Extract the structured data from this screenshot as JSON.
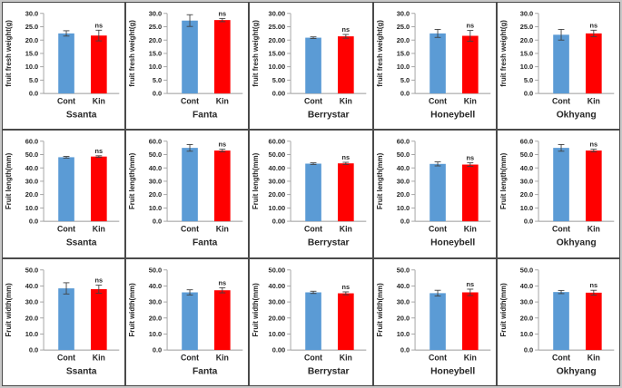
{
  "figure_title": "",
  "colors": {
    "cont_bar": "#5b9bd5",
    "kin_bar": "#ff0000",
    "error_bar": "#404040",
    "axis_line": "#9b9b9b",
    "text": "#262626",
    "panel_border": "#4a4a4a",
    "frame": "#c8c8c8"
  },
  "categories": [
    "Cont",
    "Kin"
  ],
  "annotation_label": "ns",
  "chart_data": [
    {
      "type": "bar",
      "row": 1,
      "col": 1,
      "cultivar": "Ssanta",
      "ylabel": "fruit fresh weight(g)",
      "ylim": [
        0,
        30
      ],
      "ytick_step": 5,
      "tick_decimals": 1,
      "categories": [
        "Cont",
        "Kin"
      ],
      "values": [
        22.5,
        21.7
      ],
      "errors": [
        1.0,
        2.0
      ],
      "annotation": "ns"
    },
    {
      "type": "bar",
      "row": 1,
      "col": 2,
      "cultivar": "Fanta",
      "ylabel": "fruit fresh weight(g)",
      "ylim": [
        0,
        30
      ],
      "ytick_step": 5,
      "tick_decimals": 1,
      "categories": [
        "Cont",
        "Kin"
      ],
      "values": [
        27.3,
        27.5
      ],
      "errors": [
        2.2,
        0.6
      ],
      "annotation": "ns"
    },
    {
      "type": "bar",
      "row": 1,
      "col": 3,
      "cultivar": "Berrystar",
      "ylabel": "fruit fresh weight(g)",
      "ylim": [
        0,
        30
      ],
      "ytick_step": 5,
      "tick_decimals": 2,
      "categories": [
        "Cont",
        "Kin"
      ],
      "values": [
        20.9,
        21.4
      ],
      "errors": [
        0.3,
        0.7
      ],
      "annotation": "ns"
    },
    {
      "type": "bar",
      "row": 1,
      "col": 4,
      "cultivar": "Honeybell",
      "ylabel": "fruit fresh weight(g)",
      "ylim": [
        0,
        30
      ],
      "ytick_step": 5,
      "tick_decimals": 1,
      "categories": [
        "Cont",
        "Kin"
      ],
      "values": [
        22.5,
        21.6
      ],
      "errors": [
        1.5,
        2.0
      ],
      "annotation": "ns"
    },
    {
      "type": "bar",
      "row": 1,
      "col": 5,
      "cultivar": "Okhyang",
      "ylabel": "fruit fresh weight(g)",
      "ylim": [
        0,
        30
      ],
      "ytick_step": 5,
      "tick_decimals": 1,
      "categories": [
        "Cont",
        "Kin"
      ],
      "values": [
        22.0,
        22.5
      ],
      "errors": [
        2.0,
        1.2
      ],
      "annotation": "ns"
    },
    {
      "type": "bar",
      "row": 2,
      "col": 1,
      "cultivar": "Ssanta",
      "ylabel": "Fruit length(mm)",
      "ylim": [
        0,
        60
      ],
      "ytick_step": 10,
      "tick_decimals": 1,
      "categories": [
        "Cont",
        "Kin"
      ],
      "values": [
        48.0,
        48.5
      ],
      "errors": [
        0.6,
        0.6
      ],
      "annotation": "ns"
    },
    {
      "type": "bar",
      "row": 2,
      "col": 2,
      "cultivar": "Fanta",
      "ylabel": "Fruit length(mm)",
      "ylim": [
        0,
        60
      ],
      "ytick_step": 10,
      "tick_decimals": 1,
      "categories": [
        "Cont",
        "Kin"
      ],
      "values": [
        55.0,
        53.0
      ],
      "errors": [
        2.5,
        1.0
      ],
      "annotation": "ns"
    },
    {
      "type": "bar",
      "row": 2,
      "col": 3,
      "cultivar": "Berrystar",
      "ylabel": "Fruit length(mm)",
      "ylim": [
        0,
        60
      ],
      "ytick_step": 10,
      "tick_decimals": 2,
      "categories": [
        "Cont",
        "Kin"
      ],
      "values": [
        43.2,
        43.4
      ],
      "errors": [
        0.6,
        0.8
      ],
      "annotation": "ns"
    },
    {
      "type": "bar",
      "row": 2,
      "col": 4,
      "cultivar": "Honeybell",
      "ylabel": "Fruit length(mm)",
      "ylim": [
        0,
        60
      ],
      "ytick_step": 10,
      "tick_decimals": 1,
      "categories": [
        "Cont",
        "Kin"
      ],
      "values": [
        43.0,
        42.5
      ],
      "errors": [
        1.5,
        1.3
      ],
      "annotation": "ns"
    },
    {
      "type": "bar",
      "row": 2,
      "col": 5,
      "cultivar": "Okhyang",
      "ylabel": "Fruit length(mm)",
      "ylim": [
        0,
        60
      ],
      "ytick_step": 10,
      "tick_decimals": 1,
      "categories": [
        "Cont",
        "Kin"
      ],
      "values": [
        55.0,
        53.0
      ],
      "errors": [
        2.5,
        1.0
      ],
      "annotation": "ns"
    },
    {
      "type": "bar",
      "row": 3,
      "col": 1,
      "cultivar": "Ssanta",
      "ylabel": "Fruit width(mm)",
      "ylim": [
        0,
        50
      ],
      "ytick_step": 10,
      "tick_decimals": 1,
      "categories": [
        "Cont",
        "Kin"
      ],
      "values": [
        38.5,
        38.0
      ],
      "errors": [
        3.5,
        2.5
      ],
      "annotation": "ns"
    },
    {
      "type": "bar",
      "row": 3,
      "col": 2,
      "cultivar": "Fanta",
      "ylabel": "Fruit width(mm)",
      "ylim": [
        0,
        50
      ],
      "ytick_step": 10,
      "tick_decimals": 1,
      "categories": [
        "Cont",
        "Kin"
      ],
      "values": [
        36.0,
        37.3
      ],
      "errors": [
        1.6,
        1.6
      ],
      "annotation": "ns"
    },
    {
      "type": "bar",
      "row": 3,
      "col": 3,
      "cultivar": "Berrystar",
      "ylabel": "Fruit width(mm)",
      "ylim": [
        0,
        50
      ],
      "ytick_step": 10,
      "tick_decimals": 2,
      "categories": [
        "Cont",
        "Kin"
      ],
      "values": [
        36.0,
        35.4
      ],
      "errors": [
        0.7,
        0.9
      ],
      "annotation": "ns"
    },
    {
      "type": "bar",
      "row": 3,
      "col": 4,
      "cultivar": "Honeybell",
      "ylabel": "Fruit width(mm)",
      "ylim": [
        0,
        50
      ],
      "ytick_step": 10,
      "tick_decimals": 1,
      "categories": [
        "Cont",
        "Kin"
      ],
      "values": [
        35.5,
        36.0
      ],
      "errors": [
        1.8,
        2.0
      ],
      "annotation": "ns"
    },
    {
      "type": "bar",
      "row": 3,
      "col": 5,
      "cultivar": "Okhyang",
      "ylabel": "Fruit width(mm)",
      "ylim": [
        0,
        50
      ],
      "ytick_step": 10,
      "tick_decimals": 1,
      "categories": [
        "Cont",
        "Kin"
      ],
      "values": [
        36.2,
        35.8
      ],
      "errors": [
        1.0,
        1.5
      ],
      "annotation": "ns"
    }
  ]
}
